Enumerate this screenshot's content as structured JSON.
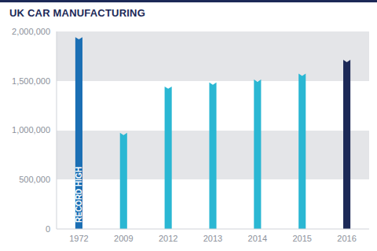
{
  "chart_data": {
    "type": "bar",
    "title": "UK CAR MANUFACTURING",
    "categories": [
      "1972",
      "2009",
      "2012",
      "2013",
      "2014",
      "2015",
      "2016"
    ],
    "values": [
      1920000,
      950000,
      1420000,
      1460000,
      1490000,
      1550000,
      1690000
    ],
    "colors": [
      "#1b6fb4",
      "#2ab7d3",
      "#2ab7d3",
      "#2ab7d3",
      "#2ab7d3",
      "#2ab7d3",
      "#1c2957"
    ],
    "ylim": [
      0,
      2000000
    ],
    "yticks": [
      0,
      {
        "value": 500000,
        "label": "500,000"
      },
      {
        "value": 1000000,
        "label": "1,000,000"
      },
      {
        "value": 1500000,
        "label": "1,500,000"
      },
      {
        "value": 2000000,
        "label": "2,000,000"
      }
    ],
    "grid": true,
    "annotations": [
      {
        "x": "1972",
        "text": "RECORD HIGH"
      }
    ]
  }
}
